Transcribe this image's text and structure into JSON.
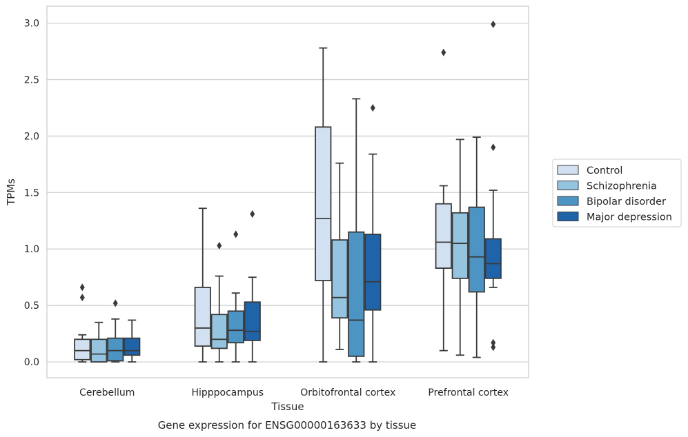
{
  "chart_data": {
    "type": "box",
    "xlabel": "Tissue",
    "ylabel": "TPMs",
    "caption": "Gene expression for ENSG00000163633 by tissue",
    "ylim": [
      -0.14,
      3.15
    ],
    "yticks": [
      "0.0",
      "0.5",
      "1.0",
      "1.5",
      "2.0",
      "2.5",
      "3.0"
    ],
    "grid": "horizontal",
    "legend_position": "right",
    "categories": [
      "Cerebellum",
      "Hipppocampus",
      "Orbitofrontal cortex",
      "Prefrontal cortex"
    ],
    "series": [
      {
        "name": "Control",
        "color": "#d1e1f1",
        "boxes": [
          {
            "whislo": 0.0,
            "q1": 0.02,
            "med": 0.1,
            "q3": 0.2,
            "whishi": 0.24,
            "fliers": [
              0.57,
              0.66
            ]
          },
          {
            "whislo": 0.0,
            "q1": 0.14,
            "med": 0.3,
            "q3": 0.66,
            "whishi": 1.36,
            "fliers": []
          },
          {
            "whislo": 0.0,
            "q1": 0.72,
            "med": 1.27,
            "q3": 2.08,
            "whishi": 2.78,
            "fliers": []
          },
          {
            "whislo": 0.1,
            "q1": 0.83,
            "med": 1.06,
            "q3": 1.4,
            "whishi": 1.56,
            "fliers": [
              2.74
            ]
          }
        ]
      },
      {
        "name": "Schizophrenia",
        "color": "#94c4df",
        "boxes": [
          {
            "whislo": 0.0,
            "q1": 0.0,
            "med": 0.07,
            "q3": 0.2,
            "whishi": 0.35,
            "fliers": []
          },
          {
            "whislo": 0.0,
            "q1": 0.12,
            "med": 0.2,
            "q3": 0.42,
            "whishi": 0.76,
            "fliers": [
              1.03
            ]
          },
          {
            "whislo": 0.11,
            "q1": 0.39,
            "med": 0.57,
            "q3": 1.08,
            "whishi": 1.76,
            "fliers": []
          },
          {
            "whislo": 0.06,
            "q1": 0.74,
            "med": 1.05,
            "q3": 1.32,
            "whishi": 1.97,
            "fliers": []
          }
        ]
      },
      {
        "name": "Bipolar disorder",
        "color": "#4c94c3",
        "boxes": [
          {
            "whislo": 0.0,
            "q1": 0.01,
            "med": 0.1,
            "q3": 0.21,
            "whishi": 0.38,
            "fliers": [
              0.52
            ]
          },
          {
            "whislo": 0.0,
            "q1": 0.17,
            "med": 0.28,
            "q3": 0.45,
            "whishi": 0.61,
            "fliers": [
              1.13
            ]
          },
          {
            "whislo": 0.0,
            "q1": 0.05,
            "med": 0.37,
            "q3": 1.15,
            "whishi": 2.33,
            "fliers": []
          },
          {
            "whislo": 0.04,
            "q1": 0.62,
            "med": 0.93,
            "q3": 1.37,
            "whishi": 1.99,
            "fliers": []
          }
        ]
      },
      {
        "name": "Major depression",
        "color": "#1f63a8",
        "boxes": [
          {
            "whislo": 0.0,
            "q1": 0.06,
            "med": 0.1,
            "q3": 0.21,
            "whishi": 0.37,
            "fliers": []
          },
          {
            "whislo": 0.0,
            "q1": 0.19,
            "med": 0.27,
            "q3": 0.53,
            "whishi": 0.75,
            "fliers": [
              1.31
            ]
          },
          {
            "whislo": 0.0,
            "q1": 0.46,
            "med": 0.71,
            "q3": 1.13,
            "whishi": 1.84,
            "fliers": [
              2.25
            ]
          },
          {
            "whislo": 0.66,
            "q1": 0.74,
            "med": 0.87,
            "q3": 1.09,
            "whishi": 1.52,
            "fliers": [
              0.13,
              0.17,
              1.9,
              2.99
            ]
          }
        ]
      }
    ]
  }
}
